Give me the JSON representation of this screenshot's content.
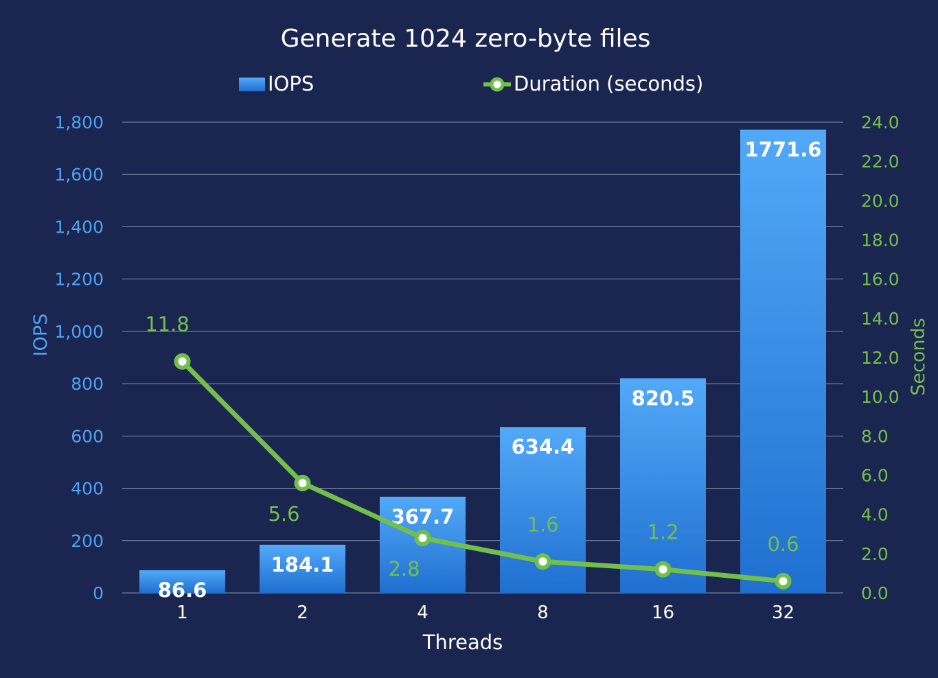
{
  "chart_data": {
    "type": "bar",
    "title": "Generate 1024 zero-byte files",
    "categories": [
      "1",
      "2",
      "4",
      "8",
      "16",
      "32"
    ],
    "series": [
      {
        "name": "IOPS",
        "type": "bar",
        "axis": "left",
        "values": [
          86.6,
          184.1,
          367.7,
          634.4,
          820.5,
          1771.6
        ],
        "labels": [
          "86.6",
          "184.1",
          "367.7",
          "634.4",
          "820.5",
          "1771.6"
        ],
        "color": "#3d8fe6"
      },
      {
        "name": "Duration (seconds)",
        "type": "line",
        "axis": "right",
        "values": [
          11.8,
          5.6,
          2.8,
          1.6,
          1.2,
          0.6
        ],
        "labels": [
          "11.8",
          "5.6",
          "2.8",
          "1.6",
          "1.2",
          "0.6"
        ],
        "color": "#72c04a"
      }
    ],
    "xlabel": "Threads",
    "ylabel": "IOPS",
    "y2label": "Seconds",
    "ylim": [
      0,
      1800
    ],
    "y2lim": [
      0,
      24
    ],
    "yticks": [
      "0",
      "200",
      "400",
      "600",
      "800",
      "1,000",
      "1,200",
      "1,400",
      "1,600",
      "1,800"
    ],
    "y2ticks": [
      "0.0",
      "2.0",
      "4.0",
      "6.0",
      "8.0",
      "10.0",
      "12.0",
      "14.0",
      "16.0",
      "18.0",
      "20.0",
      "22.0",
      "24.0"
    ],
    "grid": true,
    "legend_position": "top-center",
    "colors": {
      "background": "#1b2650",
      "bar": "#3d8fe6",
      "line": "#72c04a",
      "left_axis": "#4da3f5",
      "text": "#ffffff"
    }
  }
}
